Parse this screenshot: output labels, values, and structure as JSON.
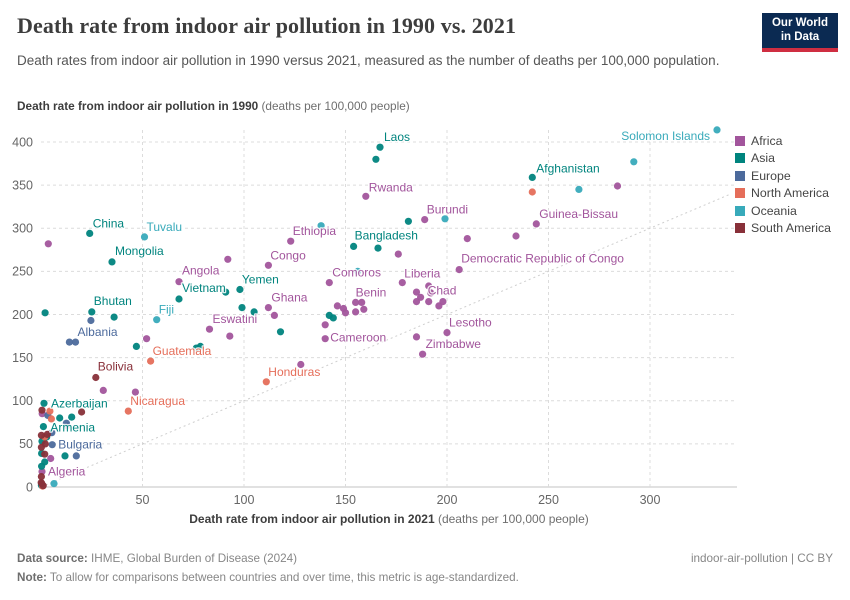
{
  "header": {
    "title": "Death rate from indoor air pollution in 1990 vs. 2021",
    "subtitle": "Death rates from indoor air pollution in 1990 versus 2021, measured as the number of deaths per 100,000 population.",
    "logo_line1": "Our World",
    "logo_line2": "in Data"
  },
  "y_axis_header": {
    "bold": "Death rate from indoor air pollution in 1990",
    "rest": " (deaths per 100,000 people)"
  },
  "x_axis_header": {
    "bold": "Death rate from indoor air pollution in 2021",
    "rest": " (deaths per 100,000 people)"
  },
  "footer": {
    "source_bold": "Data source:",
    "source_text": " IHME, Global Burden of Disease (2024)",
    "note_bold": "Note:",
    "note_text": " To allow for comparisons between countries and over time, this metric is age-standardized.",
    "license": "indoor-air-pollution | CC BY"
  },
  "chart_data": {
    "type": "scatter",
    "title": "Death rate from indoor air pollution in 1990 vs. 2021",
    "xlabel": "Death rate from indoor air pollution in 2021 (deaths per 100,000 people)",
    "ylabel": "Death rate from indoor air pollution in 1990 (deaths per 100,000 people)",
    "xlim": [
      0,
      340
    ],
    "ylim": [
      0,
      420
    ],
    "x_ticks": [
      50,
      100,
      150,
      200,
      250,
      300
    ],
    "y_ticks": [
      0,
      50,
      100,
      150,
      200,
      250,
      300,
      350,
      400
    ],
    "grid": "dashed",
    "legend_position": "right",
    "diagonal_line": {
      "from": [
        0,
        0
      ],
      "to": [
        340,
        340
      ]
    },
    "point_format": "[x2021, y1990, label?, label_dx?, label_dy?, anchor?]",
    "series": [
      {
        "name": "Africa",
        "color": "#a2559c",
        "points": [
          [
            160,
            337,
            "Rwanda",
            3,
            -5
          ],
          [
            189,
            310,
            "Burundi",
            2,
            -6
          ],
          [
            244,
            305,
            "Guinea-Bissau",
            3,
            -6
          ],
          [
            123,
            285,
            "Ethiopia",
            2,
            -6
          ],
          [
            112,
            257,
            "Congo",
            2,
            -6
          ],
          [
            206,
            252,
            "Democratic Republic of Congo",
            2,
            -7
          ],
          [
            142,
            237,
            "Comoros",
            3,
            -6
          ],
          [
            68,
            238,
            "Angola",
            3,
            -7
          ],
          [
            178,
            237,
            "Liberia",
            2,
            -5
          ],
          [
            155,
            214,
            "Benin",
            0,
            -6
          ],
          [
            191,
            215,
            "Chad",
            -1,
            -7
          ],
          [
            112,
            208,
            "Ghana",
            3,
            -6
          ],
          [
            140,
            172,
            "Cameroon",
            5,
            3
          ],
          [
            83,
            183,
            "Eswatini",
            3,
            -6
          ],
          [
            200,
            179,
            "Lesotho",
            2,
            -6
          ],
          [
            188,
            154,
            "Zimbabwe",
            3,
            -6
          ],
          [
            0.5,
            18,
            "Algeria",
            6,
            4
          ],
          [
            3.6,
            282
          ],
          [
            92,
            264
          ],
          [
            176,
            270
          ],
          [
            210,
            288
          ],
          [
            234,
            291
          ],
          [
            284,
            349
          ],
          [
            52,
            172
          ],
          [
            93,
            175
          ],
          [
            128,
            142
          ],
          [
            30.7,
            112
          ],
          [
            46.5,
            110
          ],
          [
            115,
            199
          ],
          [
            140,
            188
          ],
          [
            146,
            210
          ],
          [
            149,
            207
          ],
          [
            150,
            202
          ],
          [
            158,
            214
          ],
          [
            159,
            206
          ],
          [
            155,
            203
          ],
          [
            185,
            226
          ],
          [
            192,
            225
          ],
          [
            185,
            215
          ],
          [
            198,
            215
          ],
          [
            196,
            210
          ],
          [
            191,
            233
          ],
          [
            187,
            220
          ],
          [
            185,
            174
          ],
          [
            4.8,
            33
          ],
          [
            12.7,
            71
          ],
          [
            0.6,
            85
          ]
        ]
      },
      {
        "name": "Asia",
        "color": "#00847e",
        "points": [
          [
            167,
            394,
            "Laos",
            4,
            -6
          ],
          [
            242,
            359,
            "Afghanistan",
            4,
            -5
          ],
          [
            24,
            294,
            "China",
            3,
            -6
          ],
          [
            154,
            279,
            "Bangladesh",
            1,
            -7
          ],
          [
            35,
            261,
            "Mongolia",
            3,
            -7
          ],
          [
            98,
            229,
            "Yemen",
            2,
            -6
          ],
          [
            68,
            218,
            "Vietnam",
            3,
            -7
          ],
          [
            25,
            203,
            "Bhutan",
            2,
            -7
          ],
          [
            1.5,
            97,
            "Azerbaijan",
            7,
            4
          ],
          [
            1.2,
            70,
            "Armenia",
            7,
            5
          ],
          [
            165,
            380
          ],
          [
            181,
            308
          ],
          [
            166,
            277
          ],
          [
            2,
            202
          ],
          [
            36,
            197
          ],
          [
            47,
            163
          ],
          [
            76.5,
            161
          ],
          [
            78.5,
            163
          ],
          [
            118,
            180
          ],
          [
            99,
            208
          ],
          [
            105,
            203
          ],
          [
            142,
            199
          ],
          [
            144,
            196
          ],
          [
            91,
            226
          ],
          [
            9.2,
            80
          ],
          [
            15.1,
            81
          ],
          [
            0.5,
            53
          ],
          [
            2.8,
            58
          ],
          [
            0.3,
            39
          ],
          [
            1.8,
            29
          ],
          [
            0.3,
            24
          ],
          [
            11.8,
            36
          ],
          [
            0.2,
            2
          ]
        ]
      },
      {
        "name": "Europe",
        "color": "#4c6a9c",
        "points": [
          [
            17,
            168,
            "Albania",
            2,
            -6
          ],
          [
            5.5,
            49,
            "Bulgaria",
            6,
            4
          ],
          [
            14,
            168
          ],
          [
            24.6,
            193
          ],
          [
            3.4,
            83
          ],
          [
            12.5,
            74
          ],
          [
            17.4,
            36
          ],
          [
            5.3,
            63
          ]
        ]
      },
      {
        "name": "North America",
        "color": "#e56e5a",
        "points": [
          [
            54,
            146,
            "Guatemala",
            2,
            -6
          ],
          [
            111,
            122,
            "Honduras",
            2,
            -6
          ],
          [
            43,
            88,
            "Nicaragua",
            2,
            -6
          ],
          [
            242,
            342
          ],
          [
            5.1,
            79
          ],
          [
            4.4,
            88
          ],
          [
            1.8,
            58
          ],
          [
            0.8,
            1
          ]
        ]
      },
      {
        "name": "Oceania",
        "color": "#38aaba",
        "points": [
          [
            333,
            414,
            "Solomon Islands",
            -7,
            10,
            "end"
          ],
          [
            51,
            290,
            "Tuvalu",
            2,
            -6
          ],
          [
            57,
            194,
            "Fiji",
            2,
            -6
          ],
          [
            292,
            377
          ],
          [
            265,
            345
          ],
          [
            199,
            311
          ],
          [
            156,
            250
          ],
          [
            138,
            303
          ],
          [
            6.4,
            4
          ]
        ]
      },
      {
        "name": "South America",
        "color": "#883039",
        "points": [
          [
            27,
            127,
            "Bolivia",
            2,
            -7
          ],
          [
            0.5,
            89
          ],
          [
            20,
            87
          ],
          [
            0.2,
            60
          ],
          [
            3.1,
            61
          ],
          [
            2.1,
            50
          ],
          [
            0.2,
            46
          ],
          [
            1.8,
            38
          ],
          [
            0.2,
            12
          ],
          [
            0.1,
            5
          ],
          [
            0.4,
            4
          ],
          [
            1.1,
            1.5
          ]
        ]
      }
    ]
  }
}
